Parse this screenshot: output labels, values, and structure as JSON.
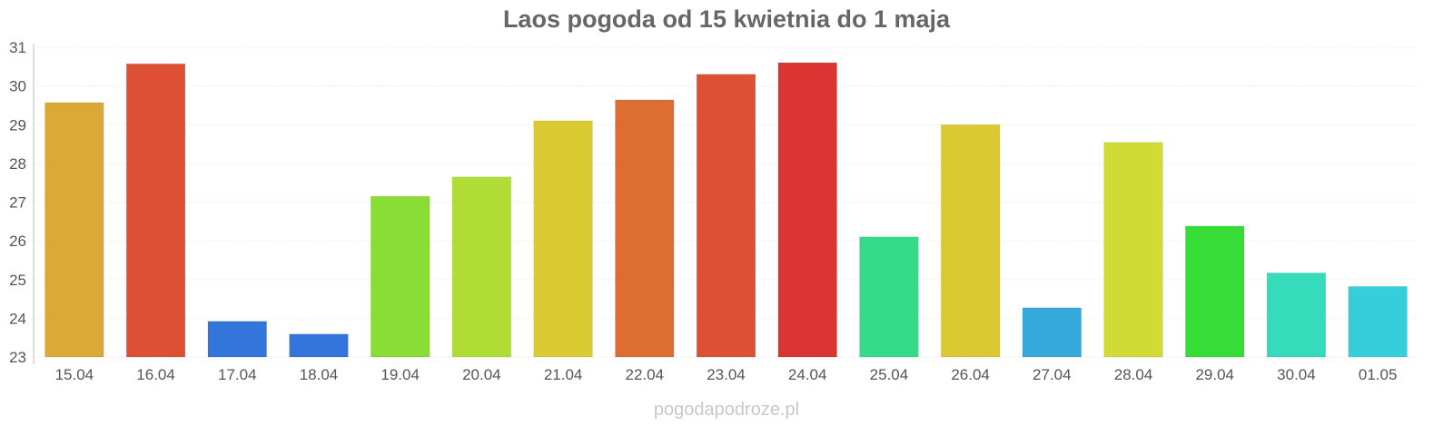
{
  "chart_data": {
    "type": "bar",
    "title": "Laos pogoda od 15 kwietnia do 1 maja",
    "xlabel": "",
    "ylabel": "",
    "ylim": [
      23,
      31
    ],
    "yticks": [
      "23",
      "24",
      "25",
      "26",
      "27",
      "28",
      "29",
      "30",
      "31"
    ],
    "grid": true,
    "categories": [
      "15.04",
      "16.04",
      "17.04",
      "18.04",
      "19.04",
      "20.04",
      "21.04",
      "22.04",
      "23.04",
      "24.04",
      "25.04",
      "26.04",
      "27.04",
      "28.04",
      "29.04",
      "30.04",
      "01.05"
    ],
    "values": [
      29.57,
      30.57,
      23.92,
      23.59,
      27.15,
      27.65,
      29.1,
      29.64,
      30.3,
      30.6,
      26.1,
      29.0,
      24.27,
      28.54,
      26.38,
      25.17,
      24.82
    ],
    "colors": [
      "#dba935",
      "#dd5033",
      "#3375db",
      "#3375db",
      "#8add35",
      "#b0dd35",
      "#dbcb33",
      "#dd6e33",
      "#dd5033",
      "#dc3433",
      "#36db8a",
      "#dbc933",
      "#36a8db",
      "#d0dc35",
      "#36dd36",
      "#36dbbb",
      "#36cedb"
    ]
  },
  "watermark": "pogodapodroze.pl"
}
